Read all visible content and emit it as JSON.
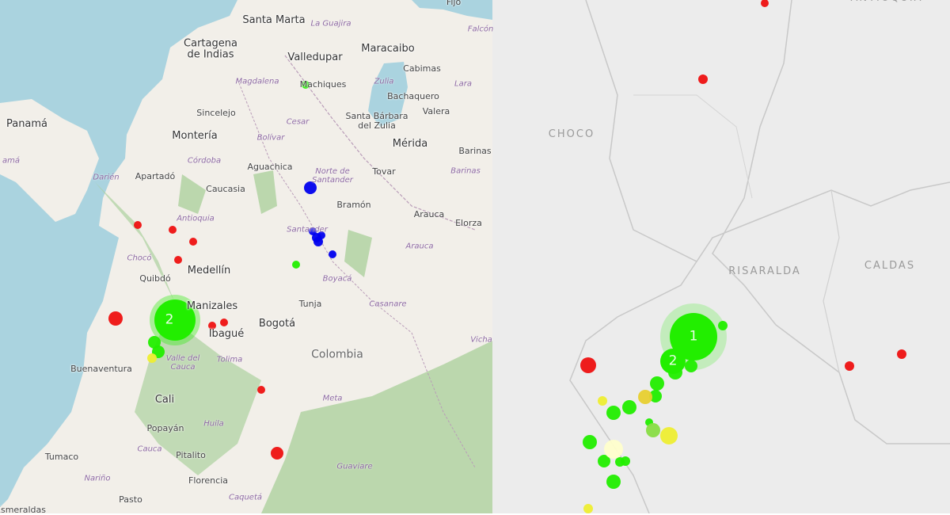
{
  "left_map": {
    "labels": [
      "Santa Marta",
      "Cartagena de Indias",
      "Valledupar",
      "Maracaibo",
      "La Guajira",
      "Fijo",
      "Falcón",
      "Cabimas",
      "Magdalena",
      "Machiques",
      "Zulia",
      "Lara",
      "Panamá",
      "Bachaquero",
      "Sincelejo",
      "Santa Bárbara del Zulia",
      "Valera",
      "Cesar",
      "Montería",
      "Bolívar",
      "Mérida",
      "Barinas",
      "amá",
      "Córdoba",
      "Aguachica",
      "Norte de Santander",
      "Tovar",
      "Barinas",
      "Apartadó",
      "Darién",
      "Caucasia",
      "Bramón",
      "Antioquia",
      "Arauca",
      "Elorza",
      "Santander",
      "Arauca",
      "Chocó",
      "Medellín",
      "Quibdó",
      "Boyacá",
      "Casanare",
      "Manizales",
      "Tunja",
      "Ibagué",
      "Bogotá",
      "Vicha",
      "Colombia",
      "Buenaventura",
      "Valle del Cauca",
      "Tolima",
      "Meta",
      "Cali",
      "Popayán",
      "Huila",
      "Cauca",
      "Pitalito",
      "Tumaco",
      "Nariño",
      "Florencia",
      "Guaviare",
      "Pasto",
      "Caquetá",
      "Esmeraldas"
    ],
    "clusters": [
      "2"
    ]
  },
  "right_map": {
    "labels": [
      "ANTIOQUIA",
      "CHOCO",
      "RISARALDA",
      "CALDAS"
    ],
    "clusters": [
      "1",
      "2"
    ]
  }
}
